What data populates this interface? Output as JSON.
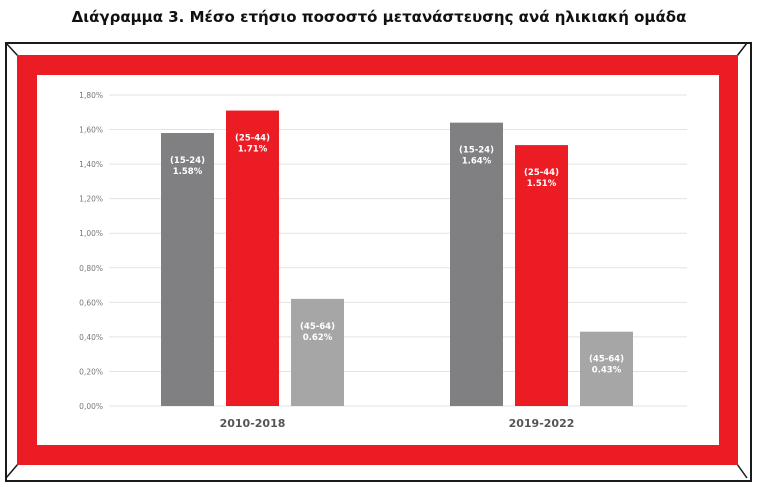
{
  "title": "Διάγραμμα 3. Μέσο ετήσιο ποσοστό μετανάστευσης ανά ηλικιακή ομάδα",
  "colors": {
    "frame_red": "#ec1c24",
    "bar_15_24": "#808083",
    "bar_25_44": "#ec1c24",
    "bar_45_64": "#a6a6a6",
    "gridline": "#e3e3e3"
  },
  "chart_data": {
    "type": "bar",
    "title": "Διάγραμμα 3. Μέσο ετήσιο ποσοστό μετανάστευσης ανά ηλικιακή ομάδα",
    "categories": [
      "2010-2018",
      "2019-2022"
    ],
    "series": [
      {
        "group": "(15-24)",
        "values": [
          1.58,
          1.64
        ],
        "labels": [
          "1.58%",
          "1.64%"
        ]
      },
      {
        "group": "(25-44)",
        "values": [
          1.71,
          1.51
        ],
        "labels": [
          "1.71%",
          "1.51%"
        ]
      },
      {
        "group": "(45-64)",
        "values": [
          0.62,
          0.43
        ],
        "labels": [
          "0.62%",
          "0.43%"
        ]
      }
    ],
    "yticks": [
      "0,00%",
      "0,20%",
      "0,40%",
      "0,60%",
      "0,80%",
      "1,00%",
      "1,20%",
      "1,40%",
      "1,60%",
      "1,80%"
    ],
    "ylim": [
      0,
      1.8
    ],
    "grid": true,
    "legend": "none"
  }
}
